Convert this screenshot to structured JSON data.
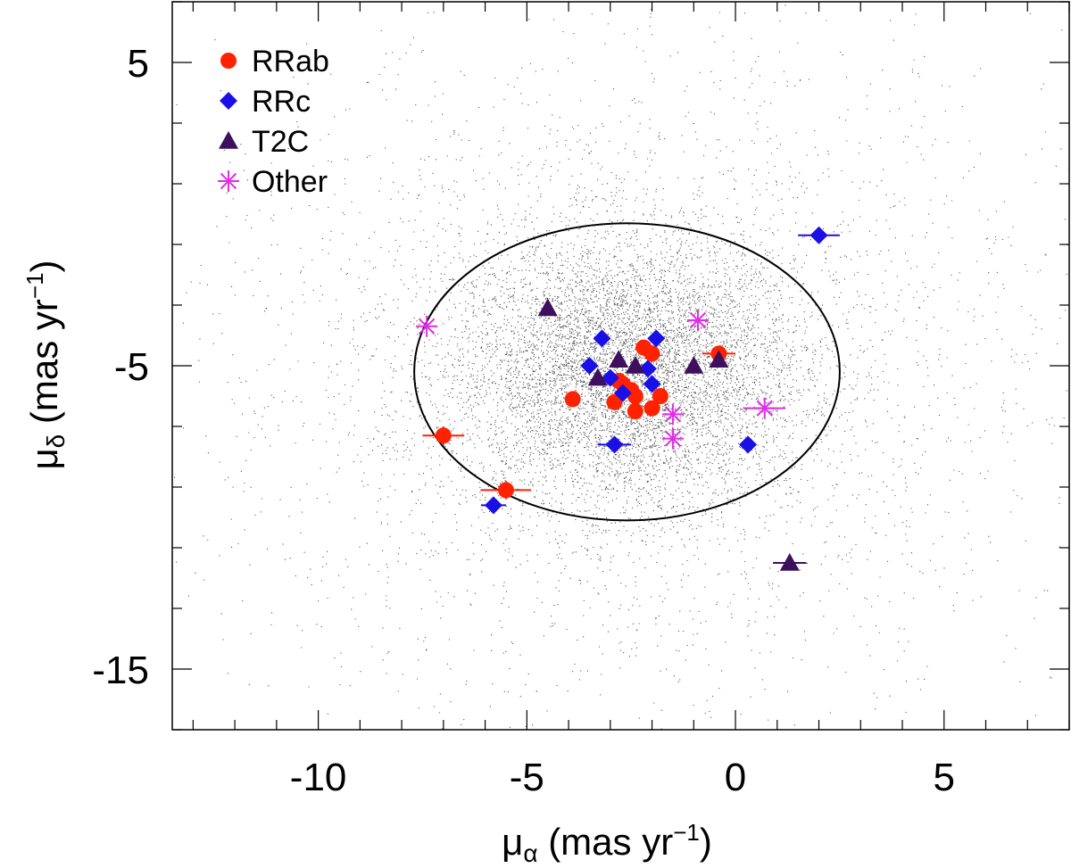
{
  "chart_data": {
    "type": "scatter",
    "xlabel": {
      "symbol": "μ",
      "sub": "α",
      "units": " (mas yr",
      "exp": "−1",
      "close": ")"
    },
    "ylabel": {
      "symbol": "μ",
      "sub": "δ",
      "units": " (mas yr",
      "exp": "−1",
      "close": ")"
    },
    "xlim": [
      -13.5,
      8.0
    ],
    "ylim": [
      -17.0,
      7.0
    ],
    "xticks": [
      {
        "value": -10,
        "label": "-10"
      },
      {
        "value": -5,
        "label": "-5"
      },
      {
        "value": 0,
        "label": "0"
      },
      {
        "value": 5,
        "label": "5"
      }
    ],
    "yticks": [
      {
        "value": 5,
        "label": "5"
      },
      {
        "value": -5,
        "label": "-5"
      },
      {
        "value": -15,
        "label": "-15"
      }
    ],
    "x_minor_step": 1,
    "y_minor_step": 2,
    "colors": {
      "RRab": "#ff2200",
      "RRc": "#1a10e6",
      "T2C": "#3d0f5c",
      "Other": "#e02ee8",
      "field": "#444444",
      "ellipse": "#000000"
    },
    "ellipse": {
      "cx": -2.6,
      "cy": -5.2,
      "rx": 5.1,
      "ry": 4.9
    },
    "background_field": {
      "center_x": -2.6,
      "center_y": -5.2,
      "n_dense": 9000,
      "n_wide": 3500
    },
    "series": [
      {
        "name": "RRab",
        "marker": "circle",
        "points": [
          {
            "x": -7.0,
            "y": -7.3,
            "xerr": 0.5,
            "yerr": 0.3
          },
          {
            "x": -5.5,
            "y": -9.1,
            "xerr": 0.6,
            "yerr": 0.3
          },
          {
            "x": -3.9,
            "y": -6.1
          },
          {
            "x": -2.9,
            "y": -6.2
          },
          {
            "x": -2.7,
            "y": -5.6
          },
          {
            "x": -2.4,
            "y": -6.0
          },
          {
            "x": -2.2,
            "y": -4.4
          },
          {
            "x": -2.0,
            "y": -4.6
          },
          {
            "x": -2.0,
            "y": -6.4
          },
          {
            "x": -2.4,
            "y": -6.5
          },
          {
            "x": -1.8,
            "y": -6.0
          },
          {
            "x": -2.5,
            "y": -5.8
          },
          {
            "x": -0.4,
            "y": -4.6,
            "xerr": 0.4
          },
          {
            "x": -2.8,
            "y": -5.5
          }
        ]
      },
      {
        "name": "RRc",
        "marker": "diamond",
        "points": [
          {
            "x": 2.0,
            "y": -0.7,
            "xerr": 0.5
          },
          {
            "x": -3.2,
            "y": -4.1
          },
          {
            "x": -1.9,
            "y": -4.1
          },
          {
            "x": -3.5,
            "y": -5.0
          },
          {
            "x": -2.1,
            "y": -5.1
          },
          {
            "x": -2.7,
            "y": -5.9
          },
          {
            "x": -2.0,
            "y": -5.6
          },
          {
            "x": -3.0,
            "y": -5.4
          },
          {
            "x": -2.9,
            "y": -7.6,
            "xerr": 0.4
          },
          {
            "x": 0.3,
            "y": -7.6
          },
          {
            "x": -5.8,
            "y": -9.6,
            "xerr": 0.3
          }
        ]
      },
      {
        "name": "T2C",
        "marker": "triangle",
        "points": [
          {
            "x": -4.5,
            "y": -3.1
          },
          {
            "x": -2.8,
            "y": -4.8
          },
          {
            "x": -2.4,
            "y": -5.0
          },
          {
            "x": -3.3,
            "y": -5.4
          },
          {
            "x": -1.0,
            "y": -5.0
          },
          {
            "x": -0.4,
            "y": -4.8
          },
          {
            "x": 1.3,
            "y": -11.5,
            "xerr": 0.4
          }
        ]
      },
      {
        "name": "Other",
        "marker": "asterisk",
        "points": [
          {
            "x": -7.4,
            "y": -3.7
          },
          {
            "x": -0.9,
            "y": -3.5
          },
          {
            "x": -1.5,
            "y": -6.6
          },
          {
            "x": -1.5,
            "y": -7.4
          },
          {
            "x": 0.7,
            "y": -6.4,
            "xerr": 0.5
          }
        ]
      }
    ],
    "legend": {
      "position": "top-left",
      "entries": [
        "RRab",
        "RRc",
        "T2C",
        "Other"
      ]
    }
  }
}
